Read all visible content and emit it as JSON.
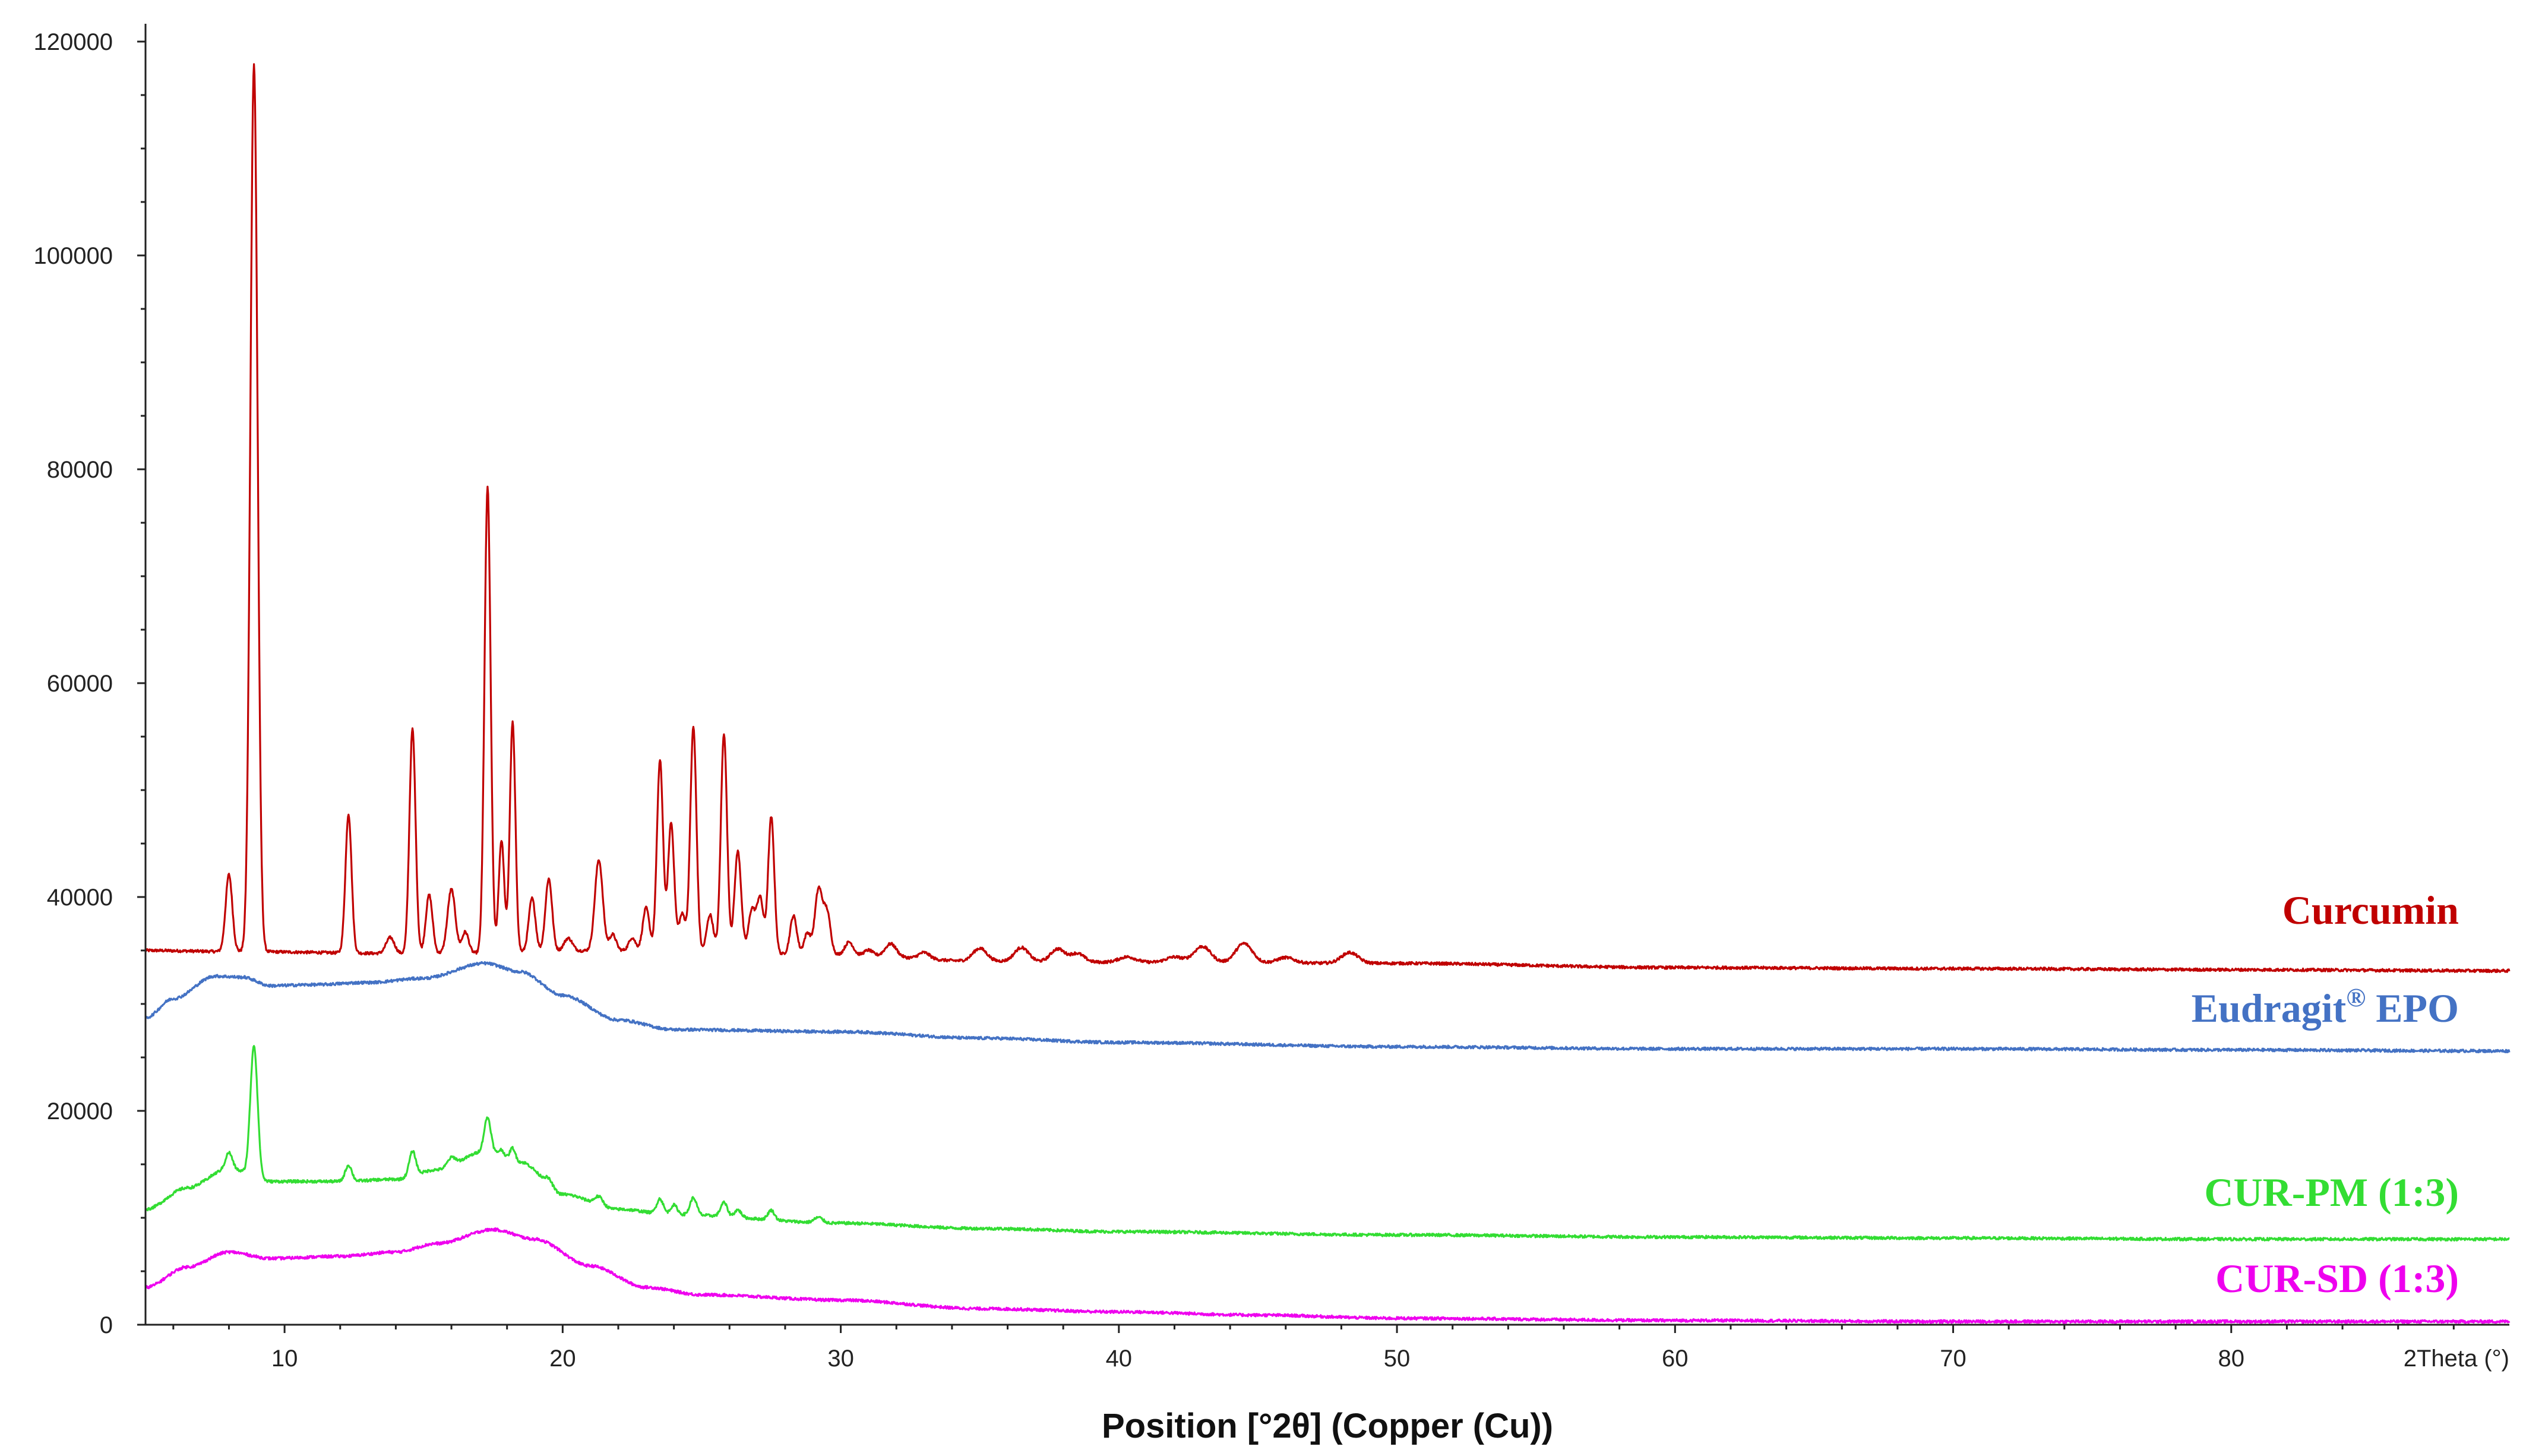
{
  "chart_data": {
    "type": "line",
    "title": "",
    "xlabel": "Position [°2θ] (Copper (Cu))",
    "xunit_label": "2Theta (°)",
    "ylabel": "",
    "xlim": [
      5,
      90
    ],
    "ylim": [
      0,
      120000
    ],
    "xticks": [
      10,
      20,
      30,
      40,
      50,
      60,
      70,
      80
    ],
    "yticks": [
      0,
      20000,
      40000,
      60000,
      80000,
      100000,
      120000
    ],
    "yticks_display": [
      "0",
      "20000",
      "40000",
      "60000",
      "80000",
      "100000",
      "120000"
    ],
    "grid": false,
    "legend": "inline-right",
    "series": [
      {
        "name": "Curcumin",
        "label_main": "Curcumin",
        "label_sup": "",
        "label_rest": "",
        "color": "#c00000",
        "baseline": [
          [
            5,
            35000
          ],
          [
            8,
            34900
          ],
          [
            15,
            34700
          ],
          [
            22,
            35000
          ],
          [
            30,
            34600
          ],
          [
            35,
            34000
          ],
          [
            40,
            33900
          ],
          [
            50,
            33800
          ],
          [
            60,
            33400
          ],
          [
            70,
            33300
          ],
          [
            80,
            33200
          ],
          [
            90,
            33100
          ]
        ],
        "peaks": [
          [
            8.0,
            7200,
            0.12
          ],
          [
            8.9,
            83000,
            0.13
          ],
          [
            12.3,
            13000,
            0.11
          ],
          [
            13.8,
            1500,
            0.15
          ],
          [
            14.6,
            21000,
            0.11
          ],
          [
            15.2,
            5500,
            0.12
          ],
          [
            16.0,
            6000,
            0.14
          ],
          [
            16.5,
            2000,
            0.12
          ],
          [
            17.3,
            43500,
            0.11
          ],
          [
            17.8,
            10500,
            0.1
          ],
          [
            18.2,
            21500,
            0.1
          ],
          [
            18.9,
            5000,
            0.12
          ],
          [
            19.5,
            6800,
            0.12
          ],
          [
            20.2,
            1200,
            0.15
          ],
          [
            21.3,
            8500,
            0.14
          ],
          [
            21.8,
            1500,
            0.12
          ],
          [
            22.5,
            1200,
            0.12
          ],
          [
            23.0,
            4000,
            0.12
          ],
          [
            23.5,
            17800,
            0.11
          ],
          [
            23.9,
            12000,
            0.11
          ],
          [
            24.3,
            3500,
            0.12
          ],
          [
            24.7,
            21000,
            0.11
          ],
          [
            25.3,
            3500,
            0.12
          ],
          [
            25.8,
            20500,
            0.11
          ],
          [
            26.3,
            9500,
            0.12
          ],
          [
            26.8,
            4000,
            0.12
          ],
          [
            27.1,
            5200,
            0.12
          ],
          [
            27.5,
            12800,
            0.11
          ],
          [
            28.3,
            3600,
            0.12
          ],
          [
            28.8,
            2000,
            0.12
          ],
          [
            29.2,
            6000,
            0.13
          ],
          [
            29.5,
            4000,
            0.13
          ],
          [
            30.3,
            1200,
            0.15
          ],
          [
            31.0,
            500,
            0.15
          ],
          [
            31.8,
            1200,
            0.2
          ],
          [
            33.0,
            600,
            0.2
          ],
          [
            35.0,
            1200,
            0.25
          ],
          [
            36.5,
            1300,
            0.25
          ],
          [
            37.8,
            1200,
            0.25
          ],
          [
            38.5,
            800,
            0.25
          ],
          [
            40.3,
            500,
            0.3
          ],
          [
            42.0,
            500,
            0.3
          ],
          [
            43.0,
            1500,
            0.3
          ],
          [
            44.5,
            1800,
            0.3
          ],
          [
            46.0,
            500,
            0.3
          ],
          [
            48.3,
            1000,
            0.3
          ]
        ]
      },
      {
        "name": "Eudragit® EPO",
        "label_main": "Eudragit",
        "label_sup": "®",
        "label_rest": " EPO",
        "color": "#4472c4",
        "baseline": [
          [
            5,
            28700
          ],
          [
            6,
            30500
          ],
          [
            7.5,
            32600
          ],
          [
            8.5,
            32500
          ],
          [
            9.5,
            31700
          ],
          [
            11,
            31800
          ],
          [
            13,
            32000
          ],
          [
            15,
            32400
          ],
          [
            17.2,
            33800
          ],
          [
            18.5,
            33000
          ],
          [
            20,
            30800
          ],
          [
            22,
            28500
          ],
          [
            24,
            27600
          ],
          [
            30,
            27400
          ],
          [
            35,
            26800
          ],
          [
            40,
            26400
          ],
          [
            50,
            26000
          ],
          [
            60,
            25800
          ],
          [
            70,
            25800
          ],
          [
            80,
            25700
          ],
          [
            90,
            25600
          ]
        ],
        "peaks": []
      },
      {
        "name": "CUR-PM (1:3)",
        "label_main": "CUR-PM (1:3)",
        "label_sup": "",
        "label_rest": "",
        "color": "#33dd33",
        "baseline": [
          [
            5,
            10800
          ],
          [
            6.5,
            12800
          ],
          [
            8,
            14600
          ],
          [
            9.5,
            13400
          ],
          [
            12,
            13400
          ],
          [
            14,
            13600
          ],
          [
            15.5,
            14500
          ],
          [
            17.2,
            16200
          ],
          [
            18.5,
            15200
          ],
          [
            20,
            12200
          ],
          [
            22,
            10800
          ],
          [
            24,
            10300
          ],
          [
            30,
            9500
          ],
          [
            35,
            9000
          ],
          [
            40,
            8700
          ],
          [
            50,
            8400
          ],
          [
            60,
            8200
          ],
          [
            70,
            8100
          ],
          [
            80,
            8000
          ],
          [
            90,
            8000
          ]
        ],
        "peaks": [
          [
            8.0,
            1500,
            0.12
          ],
          [
            8.9,
            12300,
            0.13
          ],
          [
            12.3,
            1500,
            0.12
          ],
          [
            14.6,
            2300,
            0.12
          ],
          [
            16.0,
            800,
            0.15
          ],
          [
            17.3,
            3200,
            0.12
          ],
          [
            17.8,
            600,
            0.1
          ],
          [
            18.2,
            1200,
            0.1
          ],
          [
            19.5,
            700,
            0.15
          ],
          [
            21.3,
            800,
            0.15
          ],
          [
            23.5,
            1400,
            0.12
          ],
          [
            24.0,
            900,
            0.12
          ],
          [
            24.7,
            1600,
            0.12
          ],
          [
            25.8,
            1300,
            0.12
          ],
          [
            26.3,
            700,
            0.12
          ],
          [
            27.5,
            900,
            0.12
          ],
          [
            29.2,
            500,
            0.15
          ]
        ]
      },
      {
        "name": "CUR-SD (1:3)",
        "label_main": "CUR-SD (1:3)",
        "label_sup": "",
        "label_rest": "",
        "color": "#ee00ee",
        "baseline": [
          [
            5,
            3500
          ],
          [
            6.5,
            5400
          ],
          [
            8,
            6800
          ],
          [
            9.5,
            6200
          ],
          [
            12,
            6400
          ],
          [
            14,
            6800
          ],
          [
            15.5,
            7600
          ],
          [
            17.5,
            8900
          ],
          [
            19,
            8000
          ],
          [
            21,
            5500
          ],
          [
            23,
            3500
          ],
          [
            25,
            2800
          ],
          [
            30,
            2300
          ],
          [
            35,
            1500
          ],
          [
            40,
            1200
          ],
          [
            45,
            900
          ],
          [
            50,
            600
          ],
          [
            60,
            400
          ],
          [
            70,
            300
          ],
          [
            80,
            300
          ],
          [
            90,
            300
          ]
        ],
        "peaks": []
      }
    ]
  }
}
